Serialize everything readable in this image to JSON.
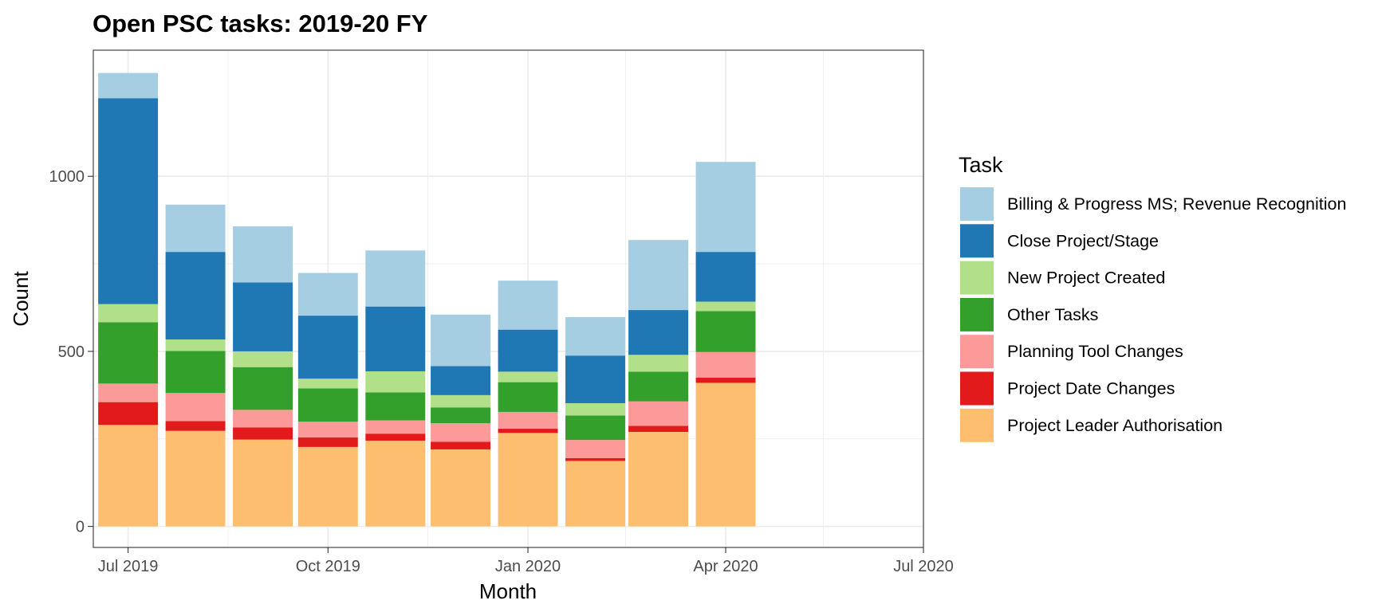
{
  "colors": {
    "Billing & Progress MS; Revenue Recognition": "#A6CEE3",
    "Close Project/Stage": "#1F78B4",
    "New Project Created": "#B2DF8A",
    "Other Tasks": "#33A02C",
    "Planning Tool Changes": "#FB9A99",
    "Project Date Changes": "#E31A1C",
    "Project Leader Authorisation": "#FDBF6F",
    "gridline": "#ebebeb",
    "axis_text": "#4d4d4d"
  },
  "chart_data": {
    "type": "bar",
    "stacked": true,
    "title": "Open PSC tasks: 2019-20 FY",
    "xlabel": "Month",
    "ylabel": "Count",
    "x_type": "date",
    "xlim": [
      "2019-06-15",
      "2020-07-01"
    ],
    "ylim": [
      -60,
      1360
    ],
    "y_ticks": [
      0,
      500,
      1000
    ],
    "y_tick_labels": [
      "0",
      "500",
      "1000"
    ],
    "x_ticks": [
      "2019-07-01",
      "2019-10-01",
      "2020-01-01",
      "2020-04-01",
      "2020-07-01"
    ],
    "x_tick_labels": [
      "Jul 2019",
      "Oct 2019",
      "Jan 2020",
      "Apr 2020",
      "Jul 2020"
    ],
    "grid": true,
    "legend": {
      "title": "Task",
      "position": "right"
    },
    "categories": [
      "2019-07-01",
      "2019-08-01",
      "2019-09-01",
      "2019-10-01",
      "2019-11-01",
      "2019-12-01",
      "2020-01-01",
      "2020-02-01",
      "2020-03-01",
      "2020-04-01"
    ],
    "series": [
      {
        "name": "Project Leader Authorisation",
        "values": [
          290,
          273,
          248,
          227,
          245,
          220,
          267,
          187,
          270,
          410
        ]
      },
      {
        "name": "Project Date Changes",
        "values": [
          65,
          28,
          35,
          27,
          20,
          22,
          12,
          8,
          17,
          15
        ]
      },
      {
        "name": "Planning Tool Changes",
        "values": [
          53,
          80,
          50,
          45,
          38,
          53,
          48,
          52,
          70,
          73
        ]
      },
      {
        "name": "Other Tasks",
        "values": [
          175,
          120,
          122,
          95,
          80,
          45,
          85,
          70,
          85,
          117
        ]
      },
      {
        "name": "New Project Created",
        "values": [
          52,
          33,
          45,
          28,
          60,
          35,
          30,
          35,
          48,
          27
        ]
      },
      {
        "name": "Close Project/Stage",
        "values": [
          588,
          250,
          197,
          180,
          185,
          83,
          120,
          136,
          128,
          142
        ]
      },
      {
        "name": "Billing & Progress MS; Revenue Recognition",
        "values": [
          72,
          135,
          160,
          122,
          160,
          147,
          140,
          110,
          200,
          257
        ]
      }
    ],
    "legend_order": [
      "Billing & Progress MS; Revenue Recognition",
      "Close Project/Stage",
      "New Project Created",
      "Other Tasks",
      "Planning Tool Changes",
      "Project Date Changes",
      "Project Leader Authorisation"
    ]
  }
}
